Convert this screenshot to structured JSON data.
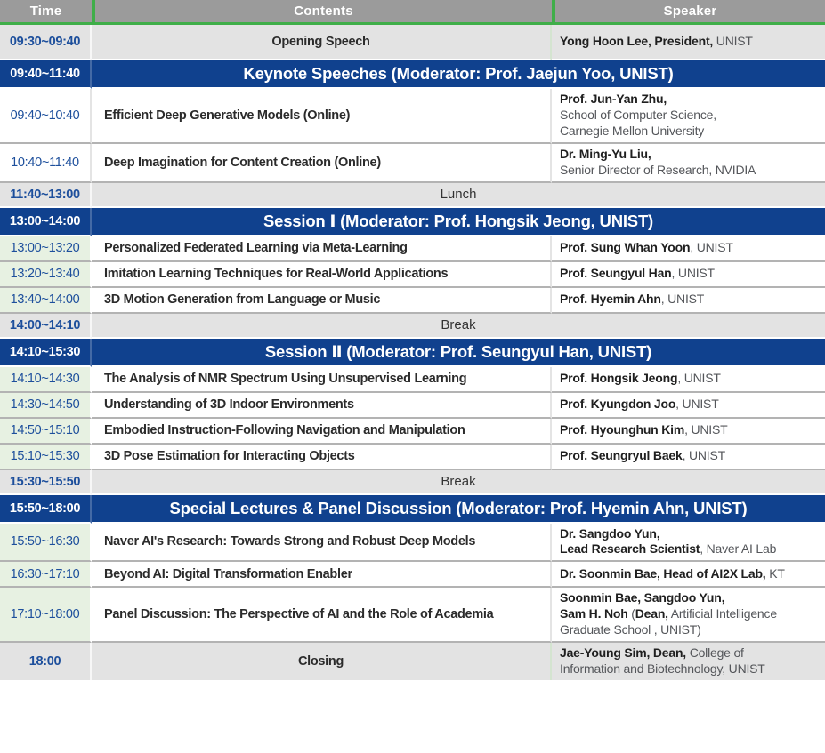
{
  "colors": {
    "accent_green": "#3fae49",
    "band_blue": "#10418e",
    "header_gray": "#9b9b9b",
    "row_gray": "#e3e3e3",
    "time_green_bg": "#e7f1e2",
    "time_text_blue": "#1d4f9c",
    "divider_gray": "#b3b3b3"
  },
  "table": {
    "headers": [
      {
        "label": "Time"
      },
      {
        "label": "Contents"
      },
      {
        "label": "Speaker"
      }
    ],
    "rows": [
      {
        "type": "highlight",
        "time": "09:30~09:40",
        "contents": "Opening Speech",
        "speaker": [
          [
            {
              "t": "Yong Hoon Lee, President,",
              "b": true
            },
            {
              "t": " UNIST",
              "b": false
            }
          ]
        ]
      },
      {
        "type": "band",
        "time": "09:40~11:40",
        "title": "Keynote Speeches (Moderator: Prof. Jaejun Yoo, UNIST)"
      },
      {
        "type": "talk",
        "time": "09:40~10:40",
        "time_bg": "white",
        "contents": "Efficient Deep Generative Models (Online)",
        "speaker": [
          [
            {
              "t": "Prof. Jun-Yan Zhu,",
              "b": true
            }
          ],
          [
            {
              "t": "School of Computer Science,",
              "b": false
            }
          ],
          [
            {
              "t": "Carnegie Mellon University",
              "b": false
            }
          ]
        ]
      },
      {
        "type": "talk",
        "time": "10:40~11:40",
        "time_bg": "white",
        "contents": "Deep Imagination for Content Creation (Online)",
        "speaker": [
          [
            {
              "t": "Dr. Ming-Yu Liu,",
              "b": true
            }
          ],
          [
            {
              "t": "Senior Director of Research, NVIDIA",
              "b": false
            }
          ]
        ]
      },
      {
        "type": "break",
        "time": "11:40~13:00",
        "label": "Lunch"
      },
      {
        "type": "band",
        "time": "13:00~14:00",
        "title": "Session Ⅰ (Moderator: Prof. Hongsik Jeong, UNIST)"
      },
      {
        "type": "talk",
        "time": "13:00~13:20",
        "time_bg": "green",
        "contents": "Personalized Federated Learning via Meta-Learning",
        "speaker": [
          [
            {
              "t": "Prof. Sung Whan Yoon",
              "b": true
            },
            {
              "t": ", UNIST",
              "b": false
            }
          ]
        ]
      },
      {
        "type": "talk",
        "time": "13:20~13:40",
        "time_bg": "green",
        "contents": "Imitation Learning Techniques for Real-World Applications",
        "speaker": [
          [
            {
              "t": "Prof. Seungyul Han",
              "b": true
            },
            {
              "t": ", UNIST",
              "b": false
            }
          ]
        ]
      },
      {
        "type": "talk",
        "time": "13:40~14:00",
        "time_bg": "green",
        "contents": "3D Motion Generation from Language or Music",
        "speaker": [
          [
            {
              "t": "Prof. Hyemin Ahn",
              "b": true
            },
            {
              "t": ", UNIST",
              "b": false
            }
          ]
        ]
      },
      {
        "type": "break",
        "time": "14:00~14:10",
        "label": "Break"
      },
      {
        "type": "band",
        "time": "14:10~15:30",
        "title": "Session Ⅱ (Moderator: Prof. Seungyul Han, UNIST)"
      },
      {
        "type": "talk",
        "time": "14:10~14:30",
        "time_bg": "green",
        "contents": "The Analysis of NMR Spectrum Using Unsupervised Learning",
        "speaker": [
          [
            {
              "t": "Prof. Hongsik Jeong",
              "b": true
            },
            {
              "t": ", UNIST",
              "b": false
            }
          ]
        ]
      },
      {
        "type": "talk",
        "time": "14:30~14:50",
        "time_bg": "green",
        "contents": "Understanding of 3D Indoor Environments",
        "speaker": [
          [
            {
              "t": "Prof. Kyungdon Joo",
              "b": true
            },
            {
              "t": ", UNIST",
              "b": false
            }
          ]
        ]
      },
      {
        "type": "talk",
        "time": "14:50~15:10",
        "time_bg": "green",
        "contents": "Embodied Instruction-Following Navigation and Manipulation",
        "speaker": [
          [
            {
              "t": "Prof. Hyounghun Kim",
              "b": true
            },
            {
              "t": ", UNIST",
              "b": false
            }
          ]
        ]
      },
      {
        "type": "talk",
        "time": "15:10~15:30",
        "time_bg": "green",
        "contents": "3D Pose Estimation for Interacting Objects",
        "speaker": [
          [
            {
              "t": "Prof. Seungryul Baek",
              "b": true
            },
            {
              "t": ", UNIST",
              "b": false
            }
          ]
        ]
      },
      {
        "type": "break",
        "time": "15:30~15:50",
        "label": "Break"
      },
      {
        "type": "band",
        "time": "15:50~18:00",
        "title": "Special Lectures & Panel Discussion (Moderator: Prof. Hyemin Ahn, UNIST)"
      },
      {
        "type": "talk",
        "time": "15:50~16:30",
        "time_bg": "green",
        "contents": "Naver AI's Research: Towards Strong and Robust Deep Models",
        "speaker": [
          [
            {
              "t": "Dr. Sangdoo Yun,",
              "b": true
            }
          ],
          [
            {
              "t": "Lead Research Scientist",
              "b": true
            },
            {
              "t": ", Naver AI Lab",
              "b": false
            }
          ]
        ]
      },
      {
        "type": "talk",
        "time": "16:30~17:10",
        "time_bg": "green",
        "contents": "Beyond AI: Digital Transformation Enabler",
        "speaker": [
          [
            {
              "t": "Dr. Soonmin Bae, Head of AI2X Lab,",
              "b": true
            },
            {
              "t": " KT",
              "b": false
            }
          ]
        ]
      },
      {
        "type": "talk",
        "time": "17:10~18:00",
        "time_bg": "green",
        "contents": "Panel Discussion: The Perspective of AI and the Role of Academia",
        "speaker": [
          [
            {
              "t": "Soonmin Bae, Sangdoo Yun,",
              "b": true
            }
          ],
          [
            {
              "t": "Sam H. Noh",
              "b": true
            },
            {
              "t": " (",
              "b": false
            },
            {
              "t": "Dean,",
              "b": true
            },
            {
              "t": " Artificial Intelligence",
              "b": false
            }
          ],
          [
            {
              "t": "Graduate School , UNIST)",
              "b": false
            }
          ]
        ]
      },
      {
        "type": "highlight",
        "time": "18:00",
        "contents": "Closing",
        "speaker": [
          [
            {
              "t": "Jae-Young Sim, Dean,",
              "b": true
            },
            {
              "t": " College of",
              "b": false
            }
          ],
          [
            {
              "t": "Information and Biotechnology, UNIST",
              "b": false
            }
          ]
        ]
      }
    ]
  }
}
